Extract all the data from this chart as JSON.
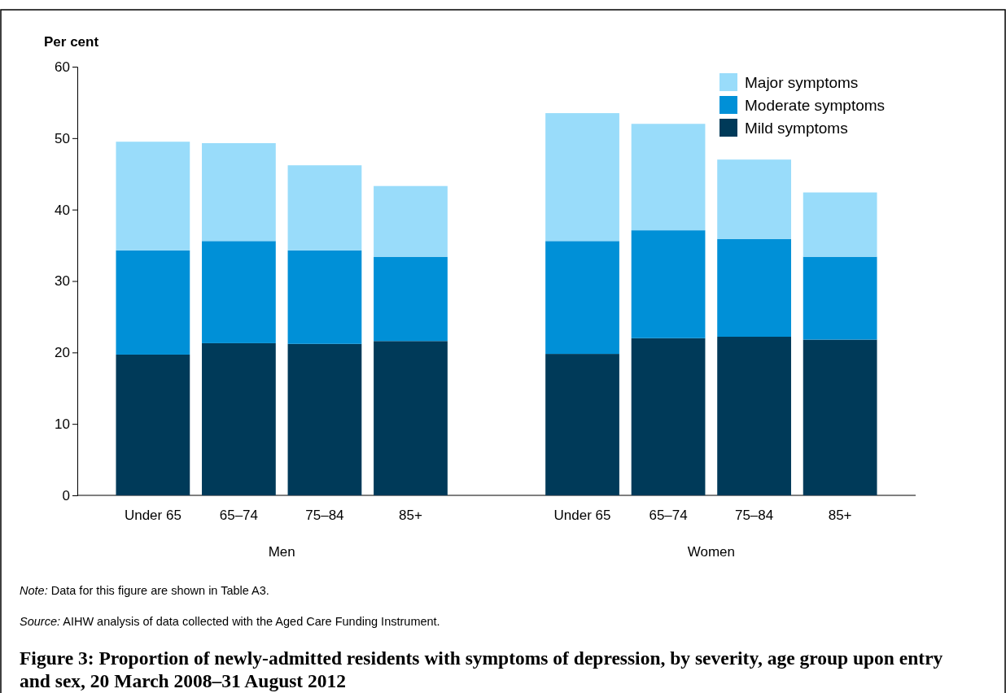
{
  "chart_data": {
    "type": "bar",
    "title": "Figure 3: Proportion of newly-admitted residents with symptoms of depression, by severity, age group upon entry and sex, 20 March 2008–31 August 2012",
    "ylabel": "Per cent",
    "categories": [
      "Under 65",
      "65–74",
      "75–84",
      "85+",
      null,
      "Under 65",
      "65–74",
      "75–84",
      "85+"
    ],
    "stacked": true,
    "series": [
      {
        "name": "Mild symptoms",
        "color": "#003a59",
        "values": [
          19.7,
          21.3,
          21.2,
          21.6,
          null,
          19.8,
          22.0,
          22.2,
          21.8
        ]
      },
      {
        "name": "Moderate symptoms",
        "color": "#0090d7",
        "values": [
          14.6,
          14.3,
          13.1,
          11.8,
          null,
          15.8,
          15.1,
          13.7,
          11.6
        ]
      },
      {
        "name": "Major symptoms",
        "color": "#99dcfa",
        "values": [
          15.2,
          13.7,
          11.9,
          9.9,
          null,
          17.9,
          14.9,
          11.1,
          9.0
        ]
      }
    ],
    "ylim": [
      0,
      60
    ],
    "yticks": [
      0,
      10,
      20,
      30,
      40,
      50,
      60
    ],
    "grid": false,
    "legend": "top right",
    "annotations": [
      "Men",
      "Women",
      "Note: Data for this figure are shown in Table A3.",
      "Source: AIHW analysis of data collected with the Aged Care Funding Instrument."
    ]
  }
}
